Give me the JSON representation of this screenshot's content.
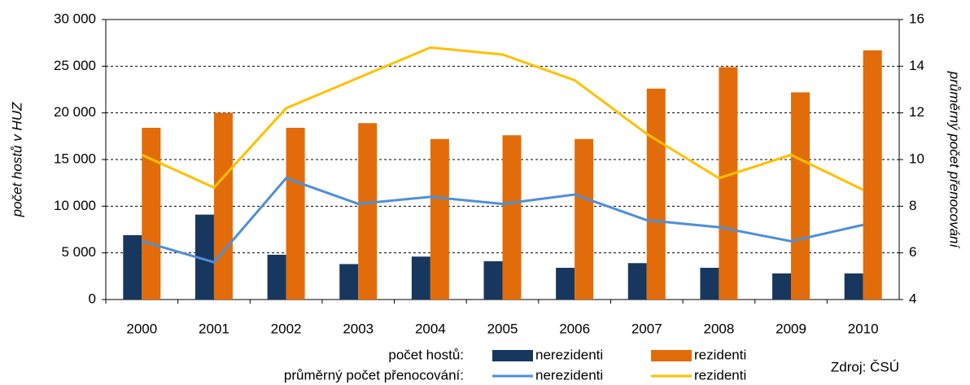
{
  "chart_data": {
    "type": "bar-line",
    "y_label": "počet hostů v HUZ",
    "y2_label": "průměrný počet přenocování",
    "categories": [
      "2000",
      "2001",
      "2002",
      "2003",
      "2004",
      "2005",
      "2006",
      "2007",
      "2008",
      "2009",
      "2010"
    ],
    "legend_groups": [
      "počet hostů:",
      "průměrný počet přenocování:"
    ],
    "series": [
      {
        "name": "nerezidenti",
        "type": "bar",
        "color": "#17375e",
        "values": [
          6900,
          9100,
          4800,
          3800,
          4600,
          4100,
          3400,
          3900,
          3400,
          2800,
          2800
        ]
      },
      {
        "name": "rezidenti",
        "type": "bar",
        "color": "#e36c0a",
        "values": [
          18400,
          20000,
          18400,
          18900,
          17200,
          17600,
          17200,
          22600,
          24900,
          22200,
          26700
        ]
      },
      {
        "name": "nerezidenti",
        "type": "line",
        "axis": "y2",
        "color": "#4f8fd6",
        "values": [
          6.5,
          5.6,
          9.2,
          8.1,
          8.4,
          8.1,
          8.5,
          7.4,
          7.1,
          6.5,
          7.2
        ]
      },
      {
        "name": "rezidenti",
        "type": "line",
        "axis": "y2",
        "color": "#ffc000",
        "values": [
          10.2,
          8.8,
          12.2,
          13.5,
          14.8,
          14.5,
          13.4,
          11.1,
          9.2,
          10.2,
          8.7
        ]
      }
    ],
    "ylim": [
      0,
      30000
    ],
    "yticks": [
      0,
      {
        "value": 5000,
        "label": "5 000"
      },
      {
        "value": 10000,
        "label": "10 000"
      },
      {
        "value": 15000,
        "label": "15 000"
      },
      {
        "value": 20000,
        "label": "20 000"
      },
      {
        "value": 25000,
        "label": "25 000"
      },
      {
        "value": 30000,
        "label": "30 000"
      }
    ],
    "y2lim": [
      4,
      16
    ],
    "y2ticks": [
      4,
      6,
      8,
      10,
      12,
      14,
      16
    ],
    "grid": true,
    "source": "Zdroj: ČSÚ"
  }
}
